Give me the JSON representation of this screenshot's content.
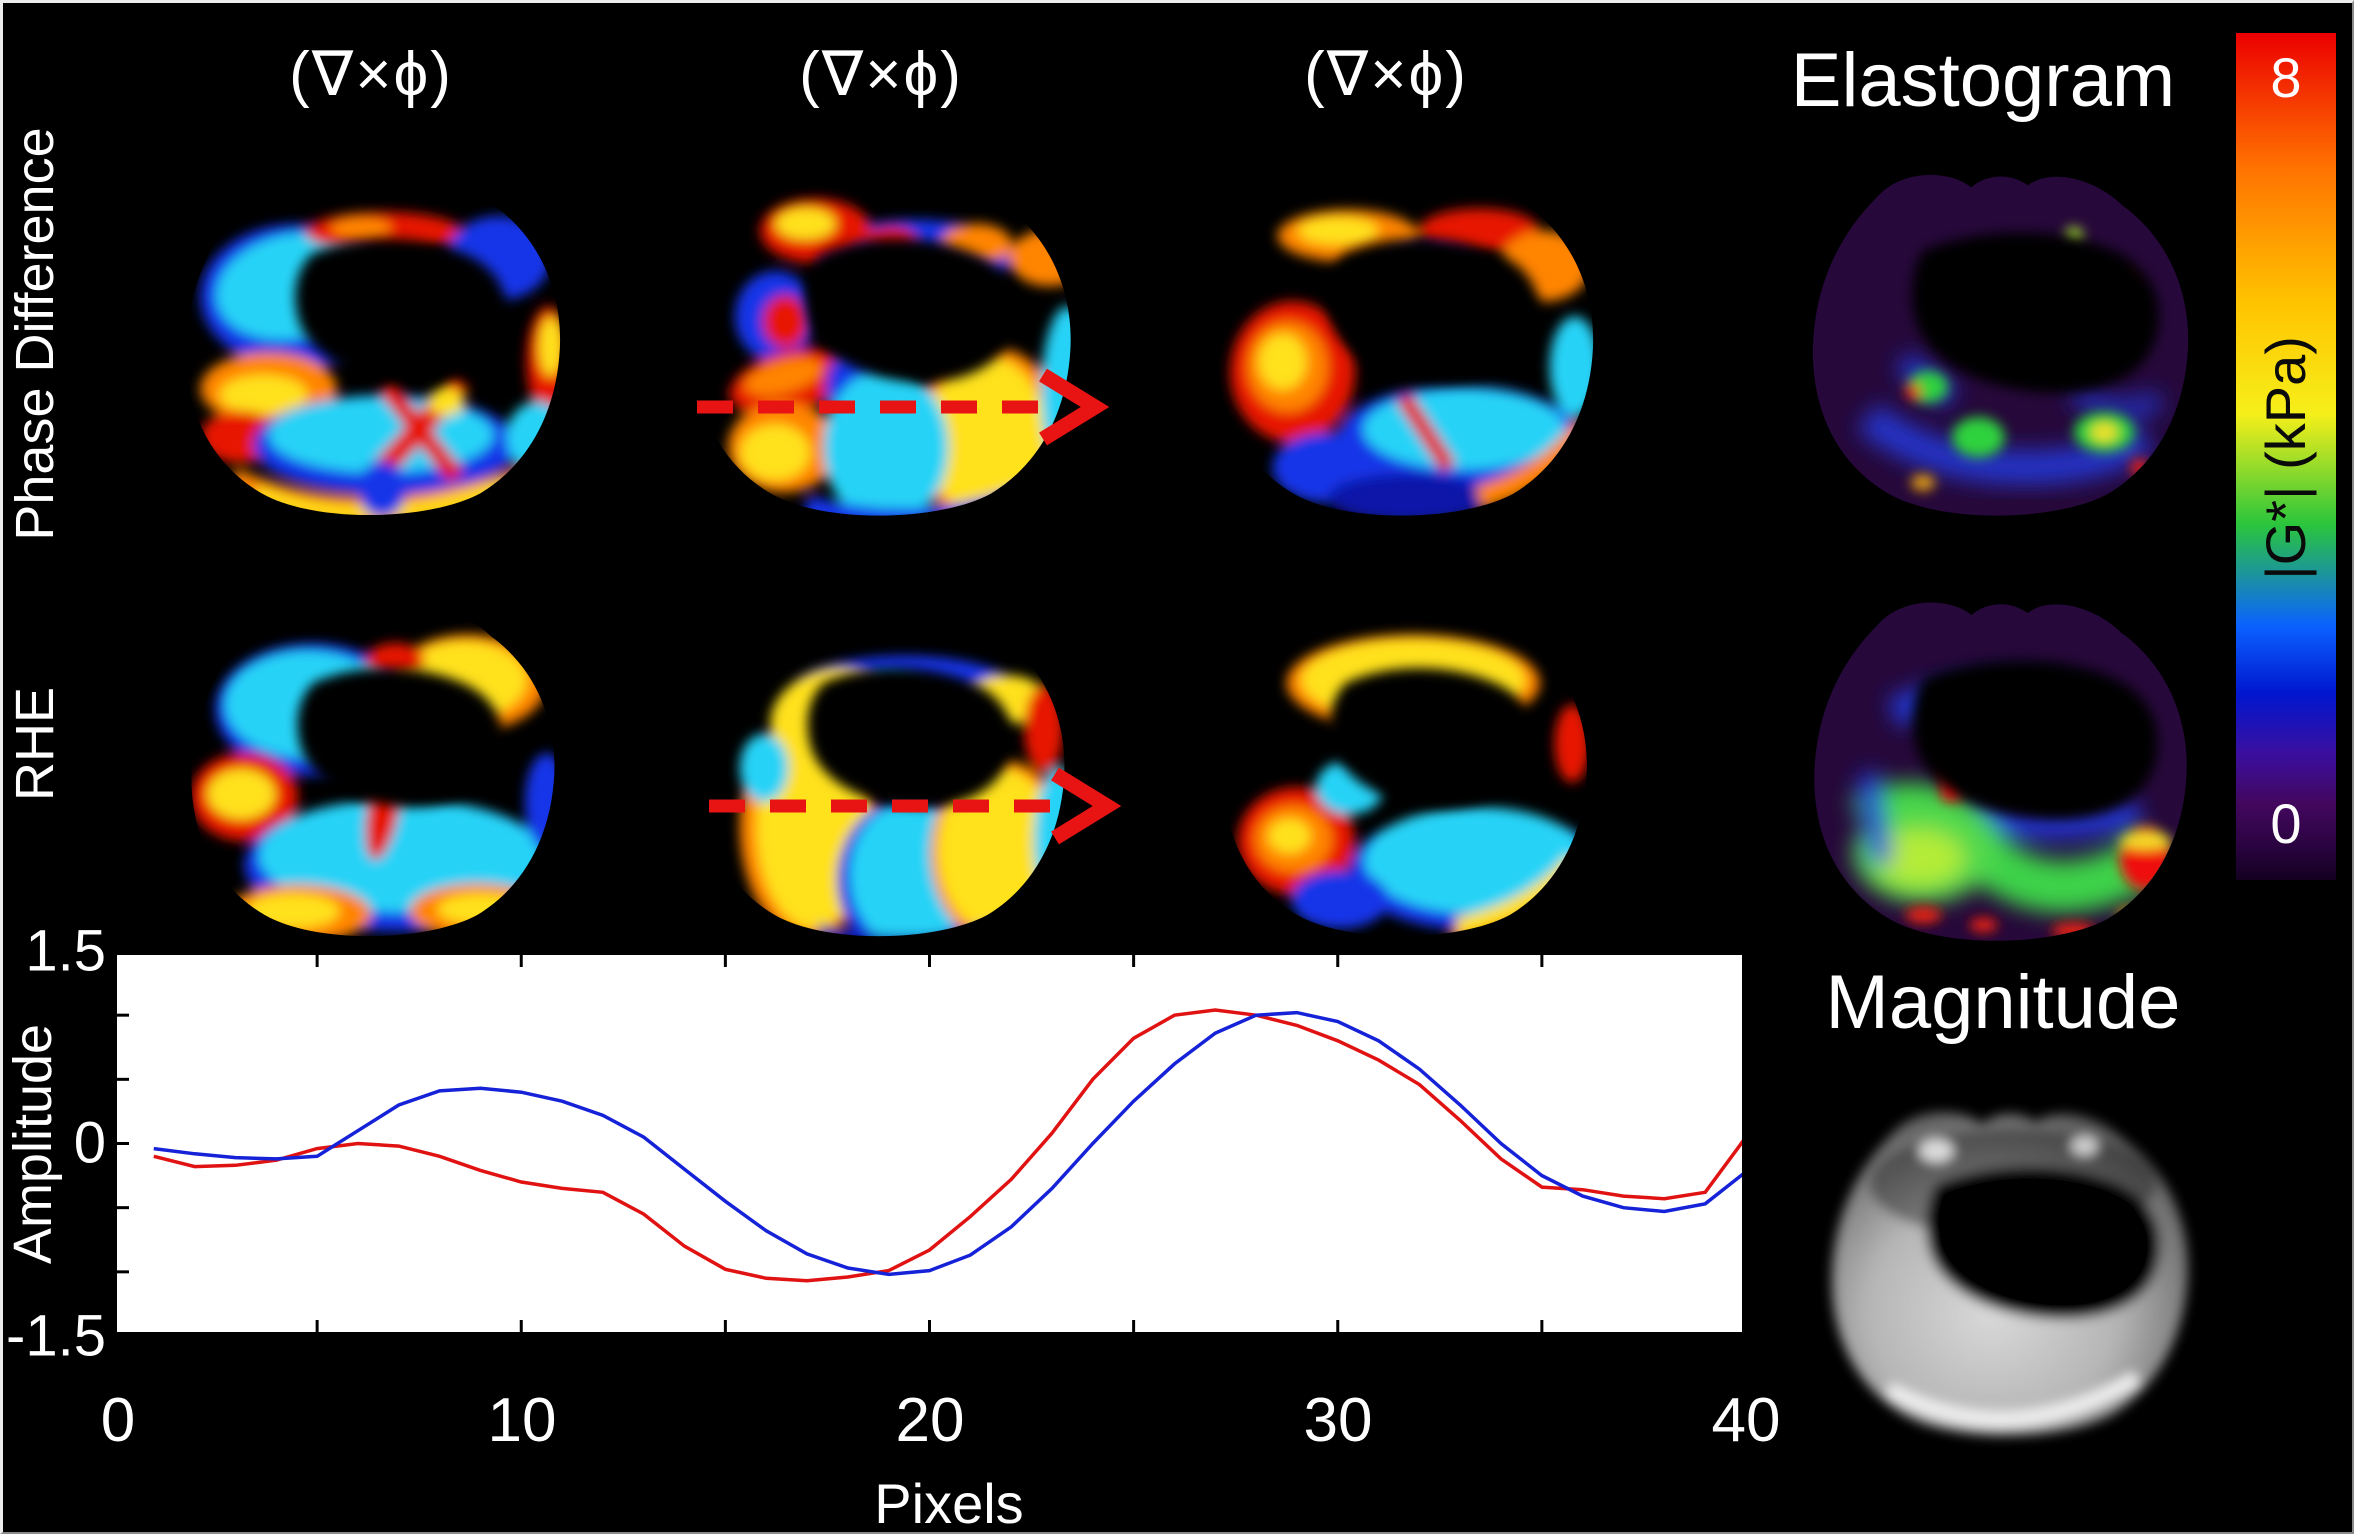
{
  "figure": {
    "row1_label": "Phase Difference",
    "row2_label": "RHE",
    "col_headers": [
      "(∇×ϕ)",
      "(∇×ϕ)",
      "(∇×ϕ)"
    ],
    "elastogram_title": "Elastogram",
    "magnitude_title": "Magnitude",
    "arrow_color": "#e81414",
    "background_color": "#000000"
  },
  "colorbar": {
    "max_label": "8",
    "min_label": "0",
    "axis_label": "|G*| (kPa)",
    "stops": [
      "#ec0000 0%",
      "#ff7300 16%",
      "#ffc400 32%",
      "#f6ef1a 45%",
      "#2bc53c 58%",
      "#0b62ff 70%",
      "#0016cf 78%",
      "#3a0fa0 85%",
      "#43075e 91%",
      "#2a0340 96%",
      "#130020 100%"
    ]
  },
  "chart_data": {
    "type": "line",
    "title": "",
    "xlabel": "Pixels",
    "ylabel": "Amplitude",
    "xlim": [
      0,
      40
    ],
    "ylim": [
      -1.5,
      1.5
    ],
    "x_tick_labels": [
      "0",
      "10",
      "20",
      "30",
      "40"
    ],
    "y_tick_labels": [
      "1.5",
      "0",
      "-1.5"
    ],
    "x_minor_tick_step": 5,
    "y_minor_tick_step": 0.5,
    "grid": false,
    "legend": "none",
    "plot_bg": "#ffffff",
    "series": [
      {
        "name": "red-profile",
        "color": "#e01212",
        "x": [
          1,
          2,
          3,
          4,
          5,
          6,
          7,
          8,
          9,
          10,
          11,
          12,
          13,
          14,
          15,
          16,
          17,
          18,
          19,
          20,
          21,
          22,
          23,
          24,
          25,
          26,
          27,
          28,
          29,
          30,
          31,
          32,
          33,
          34,
          35,
          36,
          37,
          38,
          39,
          40
        ],
        "values": [
          -0.1,
          -0.18,
          -0.17,
          -0.13,
          -0.04,
          0.0,
          -0.02,
          -0.1,
          -0.21,
          -0.3,
          -0.35,
          -0.38,
          -0.55,
          -0.8,
          -0.98,
          -1.05,
          -1.07,
          -1.04,
          -0.99,
          -0.83,
          -0.57,
          -0.28,
          0.08,
          0.5,
          0.82,
          1.0,
          1.04,
          1.0,
          0.92,
          0.8,
          0.65,
          0.46,
          0.18,
          -0.12,
          -0.34,
          -0.36,
          -0.41,
          -0.43,
          -0.38,
          0.05
        ]
      },
      {
        "name": "blue-profile",
        "color": "#1522d8",
        "x": [
          1,
          2,
          3,
          4,
          5,
          6,
          7,
          8,
          9,
          10,
          11,
          12,
          13,
          14,
          15,
          16,
          17,
          18,
          19,
          20,
          21,
          22,
          23,
          24,
          25,
          26,
          27,
          28,
          29,
          30,
          31,
          32,
          33,
          34,
          35,
          36,
          37,
          38,
          39,
          40
        ],
        "values": [
          -0.04,
          -0.08,
          -0.11,
          -0.12,
          -0.1,
          0.1,
          0.3,
          0.41,
          0.43,
          0.4,
          0.33,
          0.22,
          0.05,
          -0.2,
          -0.45,
          -0.68,
          -0.86,
          -0.97,
          -1.02,
          -0.99,
          -0.87,
          -0.65,
          -0.35,
          0.0,
          0.33,
          0.62,
          0.86,
          1.0,
          1.02,
          0.95,
          0.8,
          0.58,
          0.3,
          0.0,
          -0.25,
          -0.41,
          -0.5,
          -0.53,
          -0.47,
          -0.22
        ]
      }
    ]
  }
}
